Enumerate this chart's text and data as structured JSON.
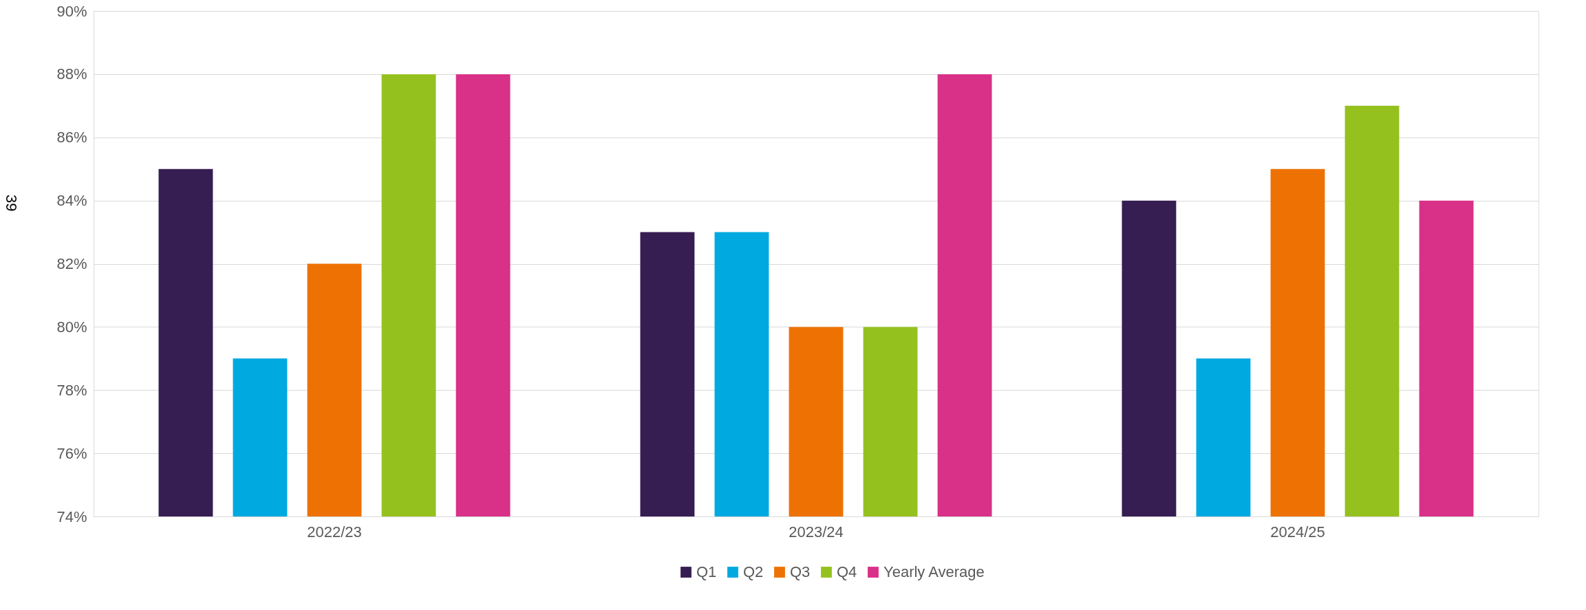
{
  "chart_data": {
    "type": "bar",
    "categories": [
      "2022/23",
      "2023/24",
      "2024/25"
    ],
    "series": [
      {
        "name": "Q1",
        "color": "#361d52",
        "values": [
          85,
          83,
          84
        ]
      },
      {
        "name": "Q2",
        "color": "#00a9e0",
        "values": [
          79,
          83,
          79
        ]
      },
      {
        "name": "Q3",
        "color": "#ee7203",
        "values": [
          82,
          80,
          85
        ]
      },
      {
        "name": "Q4",
        "color": "#95c11f",
        "values": [
          88,
          80,
          87
        ]
      },
      {
        "name": "Yearly Average",
        "color": "#d93088",
        "values": [
          88,
          88,
          84
        ]
      }
    ],
    "ylim": [
      74,
      90
    ],
    "yticks": [
      {
        "value": 74,
        "label": "74%"
      },
      {
        "value": 76,
        "label": "76%"
      },
      {
        "value": 78,
        "label": "78%"
      },
      {
        "value": 80,
        "label": "80%"
      },
      {
        "value": 82,
        "label": "82%"
      },
      {
        "value": 84,
        "label": "84%"
      },
      {
        "value": 86,
        "label": "86%"
      },
      {
        "value": 88,
        "label": "88%"
      },
      {
        "value": 90,
        "label": "90%"
      }
    ],
    "grid": "y",
    "legend": "bottom",
    "annotations": [
      "39"
    ]
  }
}
